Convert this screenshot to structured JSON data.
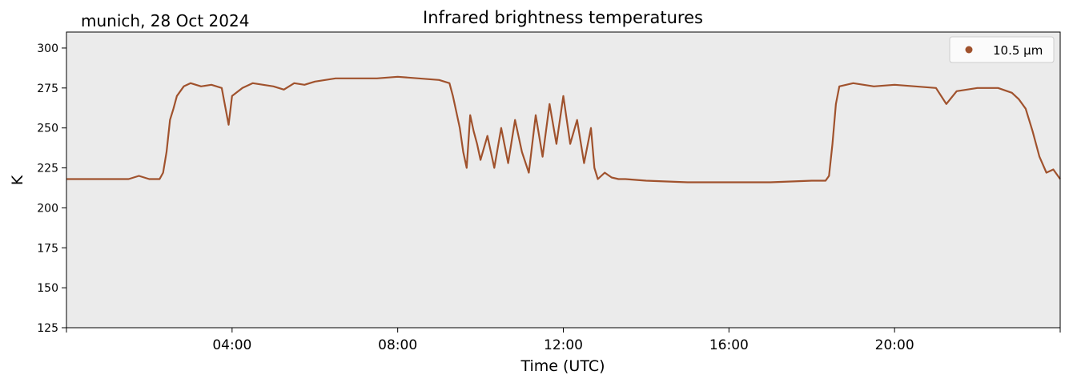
{
  "header": {
    "location_date": "munich, 28 Oct 2024",
    "title": "Infrared brightness temperatures"
  },
  "chart_data": {
    "type": "line",
    "title": "Infrared brightness temperatures",
    "xlabel": "Time (UTC)",
    "ylabel": "K",
    "x_unit": "hours (UTC)",
    "xlim": [
      "00:00",
      "24:00"
    ],
    "ylim": [
      125,
      310
    ],
    "x_ticks": [
      "04:00",
      "08:00",
      "12:00",
      "16:00",
      "20:00"
    ],
    "y_ticks": [
      125,
      150,
      175,
      200,
      225,
      250,
      275,
      300
    ],
    "grid": false,
    "legend": "top-right",
    "plot_background": "#ebebeb",
    "series": [
      {
        "name": "10.5 µm",
        "color": "#a0522d",
        "x": [
          "00:00",
          "00:30",
          "01:00",
          "01:30",
          "01:45",
          "02:00",
          "02:15",
          "02:20",
          "02:25",
          "02:30",
          "02:35",
          "02:40",
          "02:50",
          "03:00",
          "03:15",
          "03:30",
          "03:45",
          "03:55",
          "04:00",
          "04:15",
          "04:30",
          "05:00",
          "05:15",
          "05:30",
          "05:45",
          "06:00",
          "06:30",
          "07:00",
          "07:30",
          "08:00",
          "08:30",
          "09:00",
          "09:15",
          "09:20",
          "09:25",
          "09:30",
          "09:35",
          "09:40",
          "09:45",
          "09:50",
          "09:55",
          "10:00",
          "10:10",
          "10:20",
          "10:30",
          "10:40",
          "10:50",
          "11:00",
          "11:10",
          "11:20",
          "11:30",
          "11:40",
          "11:50",
          "12:00",
          "12:10",
          "12:20",
          "12:30",
          "12:40",
          "12:45",
          "12:50",
          "13:00",
          "13:10",
          "13:20",
          "13:30",
          "14:00",
          "15:00",
          "16:00",
          "17:00",
          "18:00",
          "18:20",
          "18:25",
          "18:30",
          "18:35",
          "18:40",
          "18:50",
          "19:00",
          "19:30",
          "20:00",
          "20:30",
          "21:00",
          "21:15",
          "21:30",
          "22:00",
          "22:30",
          "22:50",
          "23:00",
          "23:10",
          "23:20",
          "23:30",
          "23:40",
          "23:50",
          "24:00"
        ],
        "values": [
          218,
          218,
          218,
          218,
          220,
          218,
          218,
          222,
          235,
          255,
          262,
          270,
          276,
          278,
          276,
          277,
          275,
          252,
          270,
          275,
          278,
          276,
          274,
          278,
          277,
          279,
          281,
          281,
          281,
          282,
          281,
          280,
          278,
          270,
          260,
          250,
          235,
          225,
          258,
          248,
          240,
          230,
          245,
          225,
          250,
          228,
          255,
          235,
          222,
          258,
          232,
          265,
          240,
          270,
          240,
          255,
          228,
          250,
          225,
          218,
          222,
          219,
          218,
          218,
          217,
          216,
          216,
          216,
          217,
          217,
          220,
          240,
          265,
          276,
          277,
          278,
          276,
          277,
          276,
          275,
          265,
          273,
          275,
          275,
          272,
          268,
          262,
          248,
          232,
          222,
          224,
          218
        ]
      }
    ]
  },
  "legend": {
    "label": "10.5 µm"
  }
}
